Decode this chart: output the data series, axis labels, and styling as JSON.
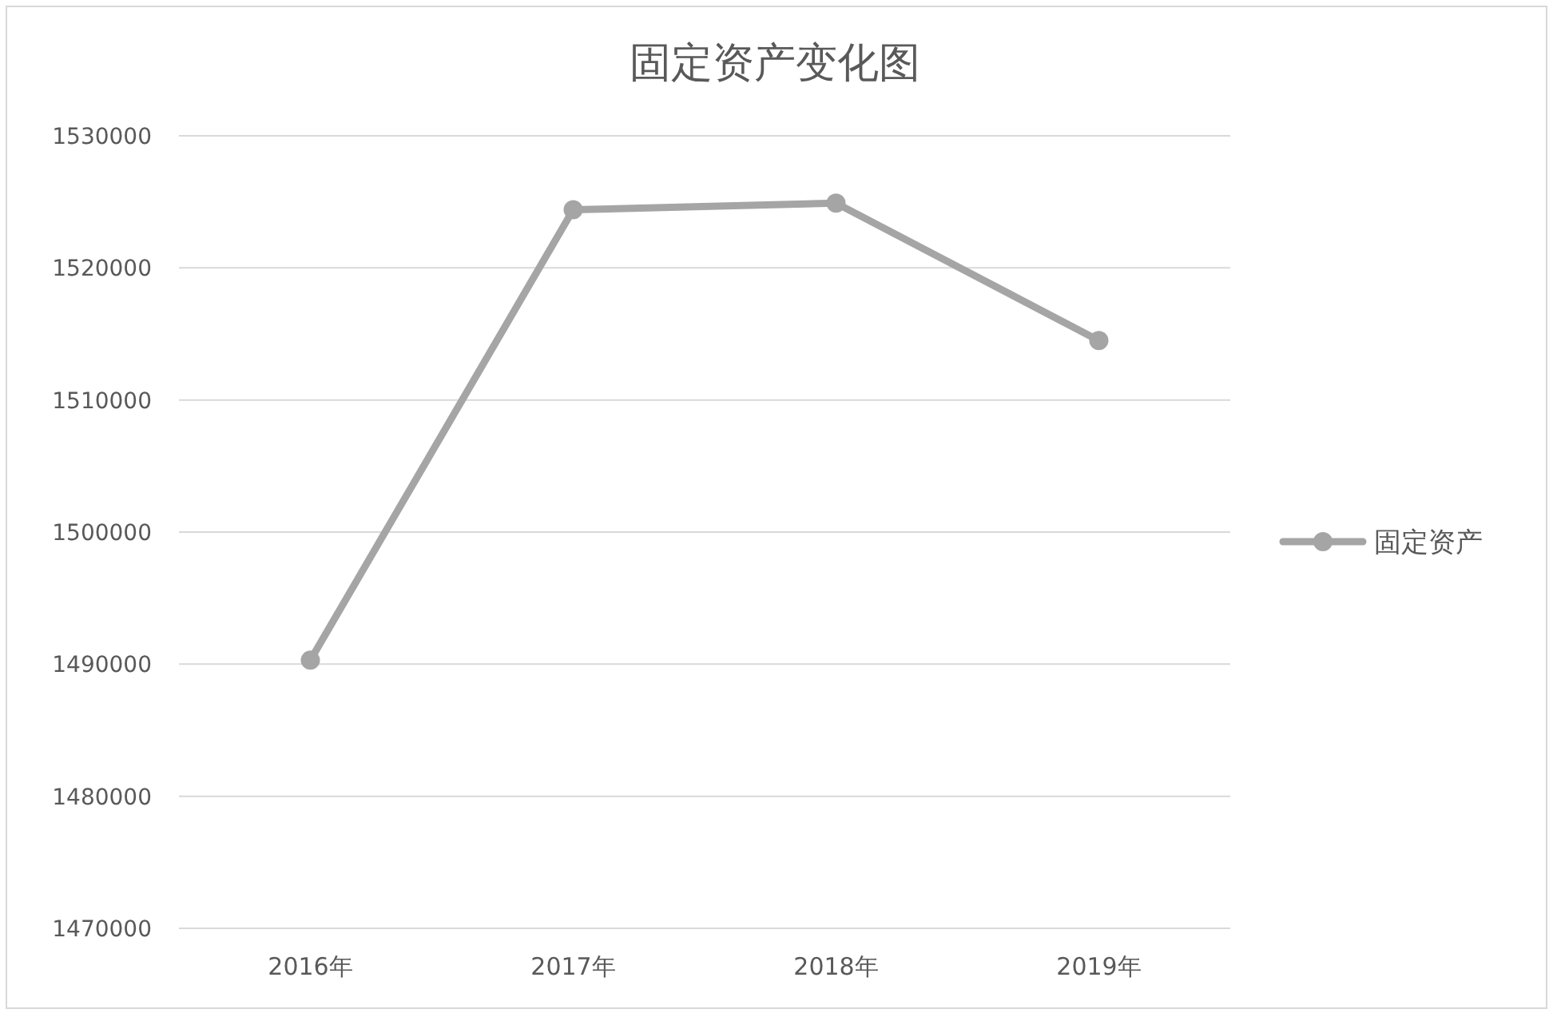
{
  "chart_data": {
    "type": "line",
    "title": "固定资产变化图",
    "categories": [
      "2016年",
      "2017年",
      "2018年",
      "2019年"
    ],
    "series": [
      {
        "name": "固定资产",
        "color": "#a5a5a5",
        "values": [
          1490300,
          1524400,
          1524900,
          1514500
        ]
      }
    ],
    "ylim": [
      1470000,
      1530000
    ],
    "yticks": [
      1470000,
      1480000,
      1490000,
      1500000,
      1510000,
      1520000,
      1530000
    ],
    "grid": "y",
    "legend": "right",
    "marker": "circle",
    "line_style": "solid"
  }
}
